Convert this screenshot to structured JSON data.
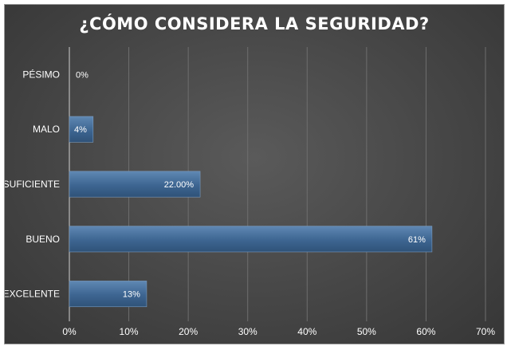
{
  "chart_data": {
    "type": "bar",
    "orientation": "horizontal",
    "title": "¿CÓMO CONSIDERA LA SEGURIDAD?",
    "categories": [
      "PÉSIMO",
      "MALO",
      "SUFICIENTE",
      "BUENO",
      "EXCELENTE"
    ],
    "values": [
      0,
      4,
      22,
      61,
      13
    ],
    "data_labels": [
      "0%",
      "4%",
      "22.00%",
      "61%",
      "13%"
    ],
    "xlim": [
      0,
      70
    ],
    "xticks": [
      "0%",
      "10%",
      "20%",
      "30%",
      "40%",
      "50%",
      "60%",
      "70%"
    ],
    "grid": true,
    "legend": "none",
    "colors": {
      "bar": "#3c6490",
      "bar_light": "#5a84b0",
      "background": "#4a4a4a",
      "text": "#ffffff"
    }
  }
}
